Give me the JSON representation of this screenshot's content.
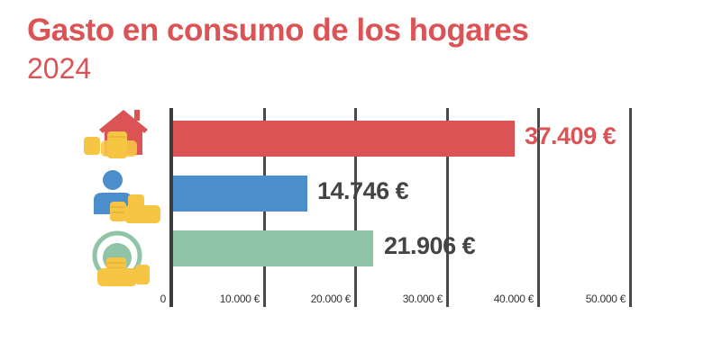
{
  "header": {
    "title": "Gasto en consumo de los hogares",
    "subtitle": "2024"
  },
  "axis": {
    "ticks": [
      "0",
      "10.000 €",
      "20.000 €",
      "30.000 €",
      "40.000 €",
      "50.000 €"
    ]
  },
  "bars": [
    {
      "icon": "house-coins-icon",
      "value_label": "37.409 €",
      "color": "#dc5356",
      "label_color": "#dc5356"
    },
    {
      "icon": "person-coins-icon",
      "value_label": "14.746 €",
      "color": "#4a8fcb",
      "label_color": "#444444"
    },
    {
      "icon": "unit-coins-icon",
      "value_label": "21.906 €",
      "color": "#8fc4a8",
      "label_color": "#444444"
    }
  ],
  "chart_data": {
    "type": "bar",
    "orientation": "horizontal",
    "title": "Gasto en consumo de los hogares",
    "subtitle": "2024",
    "categories": [
      "Hogar",
      "Persona",
      "Unidad de consumo"
    ],
    "values": [
      37409,
      14746,
      21906
    ],
    "value_labels": [
      "37.409 €",
      "14.746 €",
      "21.906 €"
    ],
    "colors": [
      "#dc5356",
      "#4a8fcb",
      "#8fc4a8"
    ],
    "xlabel": "",
    "ylabel": "",
    "xlim": [
      0,
      50000
    ],
    "xticks": [
      0,
      10000,
      20000,
      30000,
      40000,
      50000
    ],
    "xtick_labels": [
      "0",
      "10.000 €",
      "20.000 €",
      "30.000 €",
      "40.000 €",
      "50.000 €"
    ],
    "grid": "vertical",
    "legend": "none (icons used as category labels)"
  }
}
